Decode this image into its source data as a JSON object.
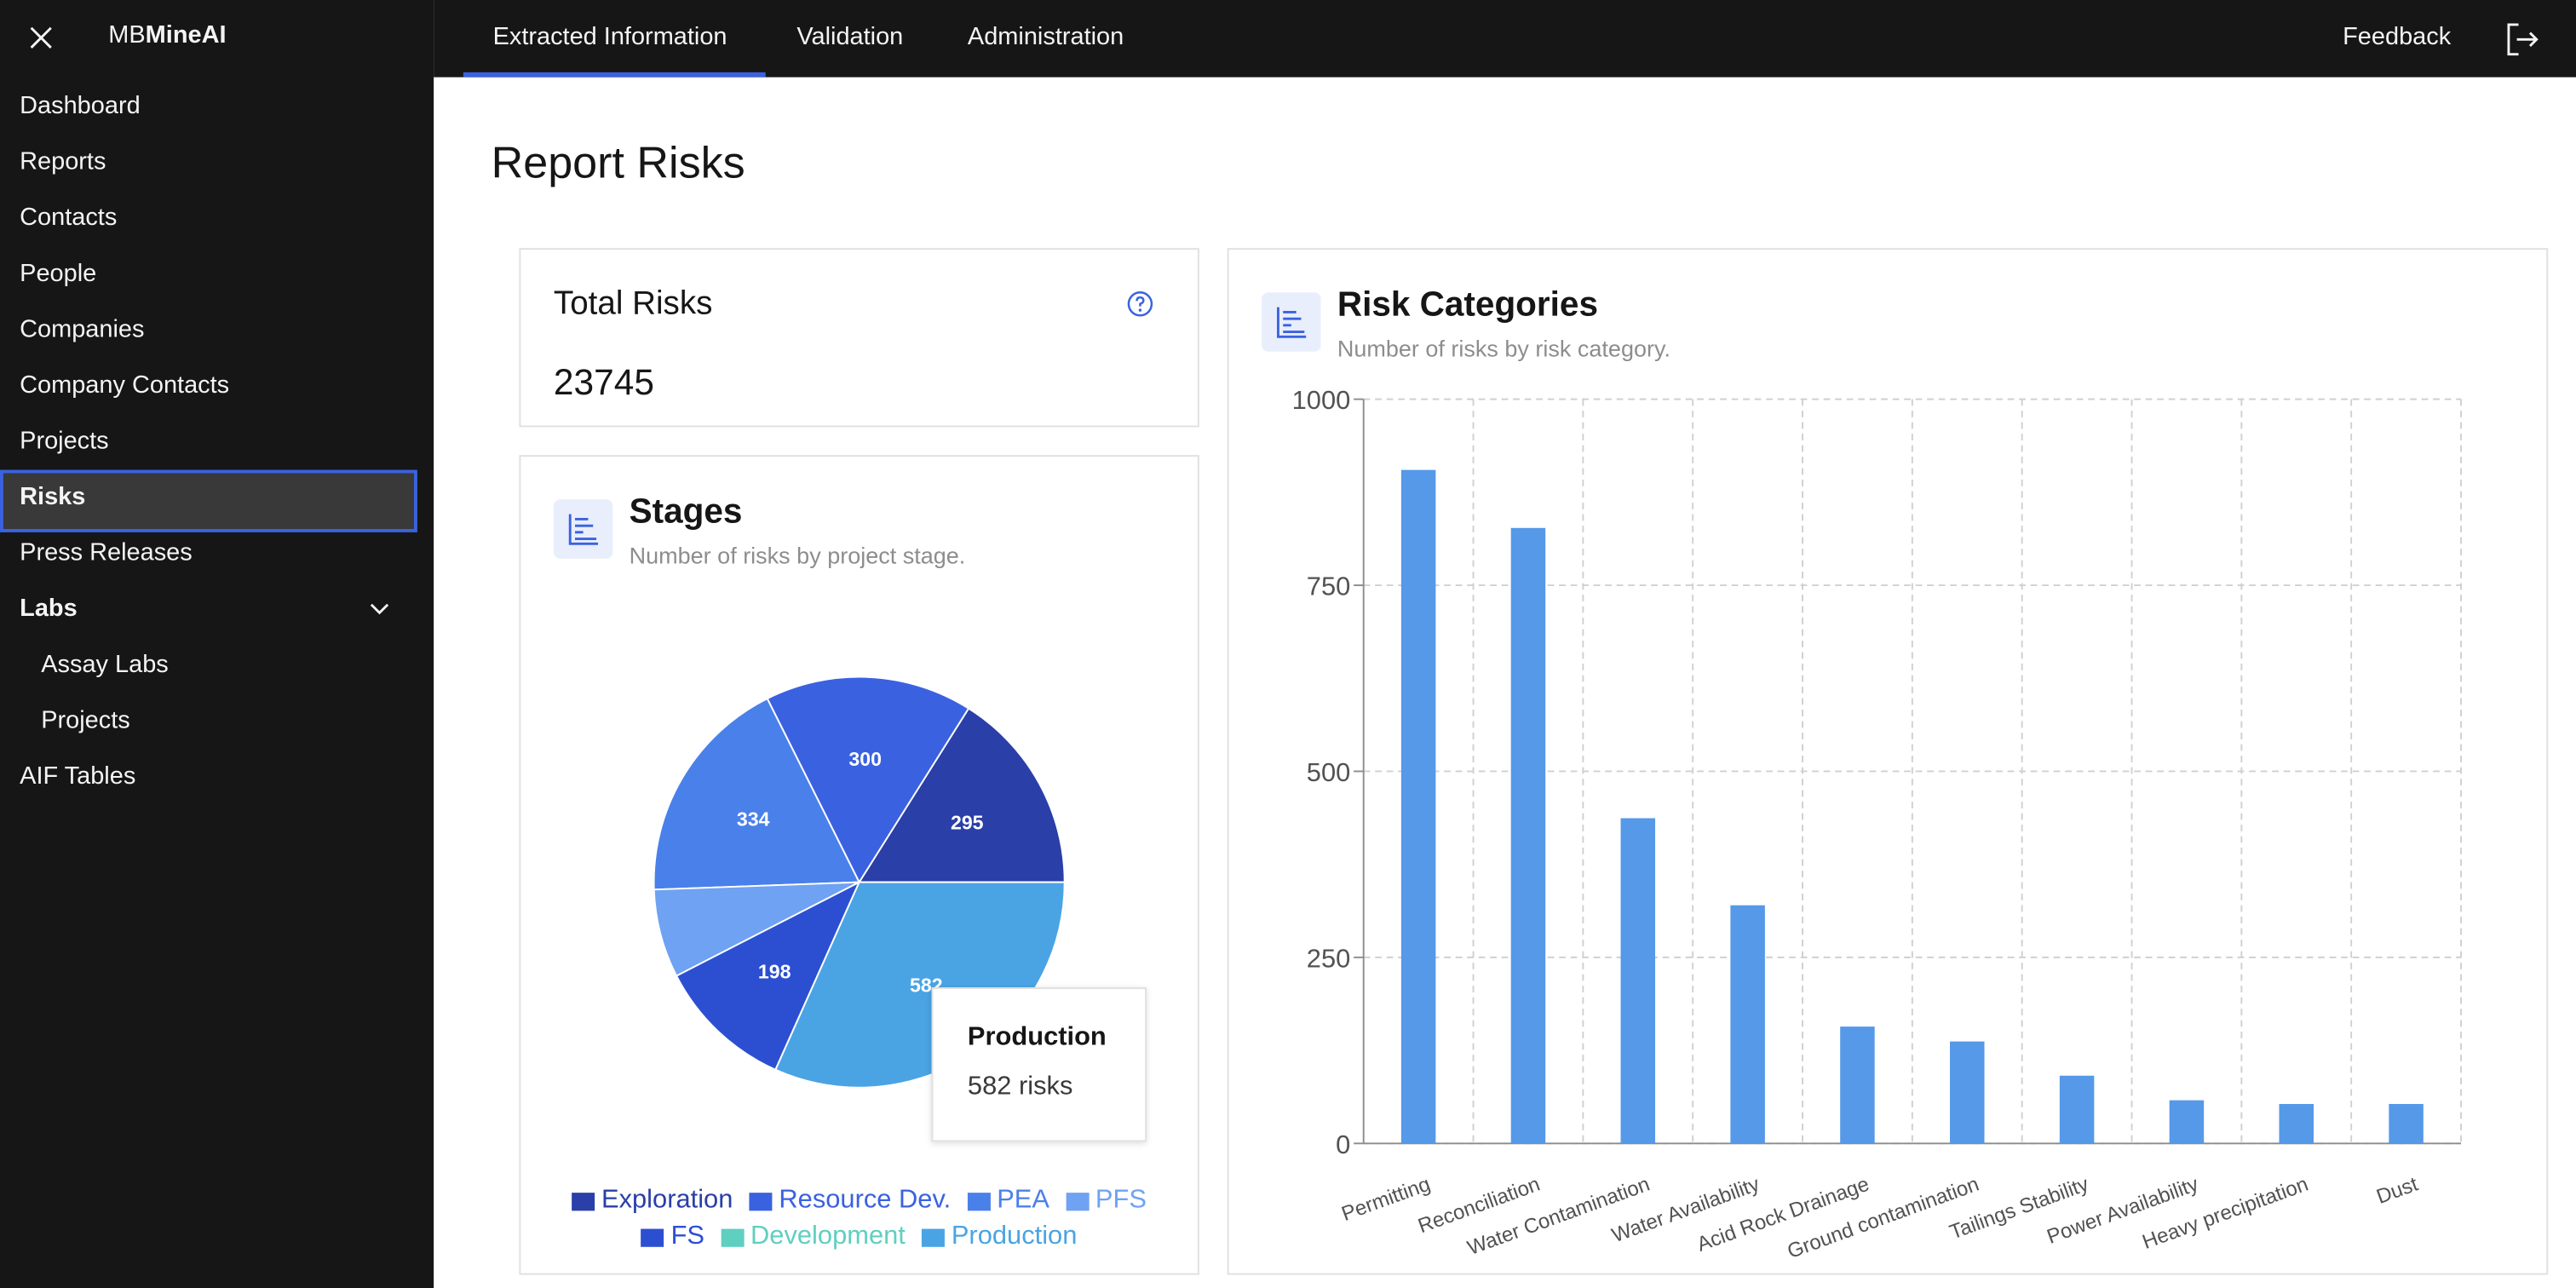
{
  "brand_prefix": "MB",
  "brand_name": "MineAI",
  "top_nav": [
    "Extracted Information",
    "Validation",
    "Administration"
  ],
  "feedback": "Feedback",
  "sidebar": [
    "Dashboard",
    "Reports",
    "Contacts",
    "People",
    "Companies",
    "Company Contacts",
    "Projects",
    "Risks",
    "Press Releases",
    "Labs",
    "Assay Labs",
    "Projects",
    "AIF Tables"
  ],
  "page_title": "Report Risks",
  "total_card": {
    "title": "Total Risks",
    "value": "23745"
  },
  "chart_data": [
    {
      "type": "pie",
      "title": "Stages",
      "subtitle": "Number of risks by project stage.",
      "categories": [
        "Exploration",
        "Resource Dev.",
        "PEA",
        "PFS",
        "FS",
        "Development",
        "Production"
      ],
      "values": [
        295,
        300,
        334,
        128,
        198,
        0,
        582
      ],
      "colors": [
        "#2a3fa8",
        "#3a62e0",
        "#4a80ea",
        "#6fa2f2",
        "#2c4fd2",
        "#5fcfc0",
        "#4aa4e4"
      ],
      "tooltip": {
        "title": "Production",
        "text": "582 risks"
      }
    },
    {
      "type": "bar",
      "title": "Risk Categories",
      "subtitle": "Number of risks by risk category.",
      "categories": [
        "Permitting",
        "Reconciliation",
        "Water Contamination",
        "Water Availability",
        "Acid Rock Drainage",
        "Ground contamination",
        "Tailings Stability",
        "Power Availability",
        "Heavy precipitation",
        "Dust"
      ],
      "values": [
        905,
        827,
        437,
        320,
        157,
        137,
        91,
        58,
        53,
        53
      ],
      "color": "#5599e8",
      "ylim": [
        0,
        1000
      ],
      "yticks": [
        0,
        250,
        500,
        750,
        1000
      ],
      "grid": true
    }
  ]
}
